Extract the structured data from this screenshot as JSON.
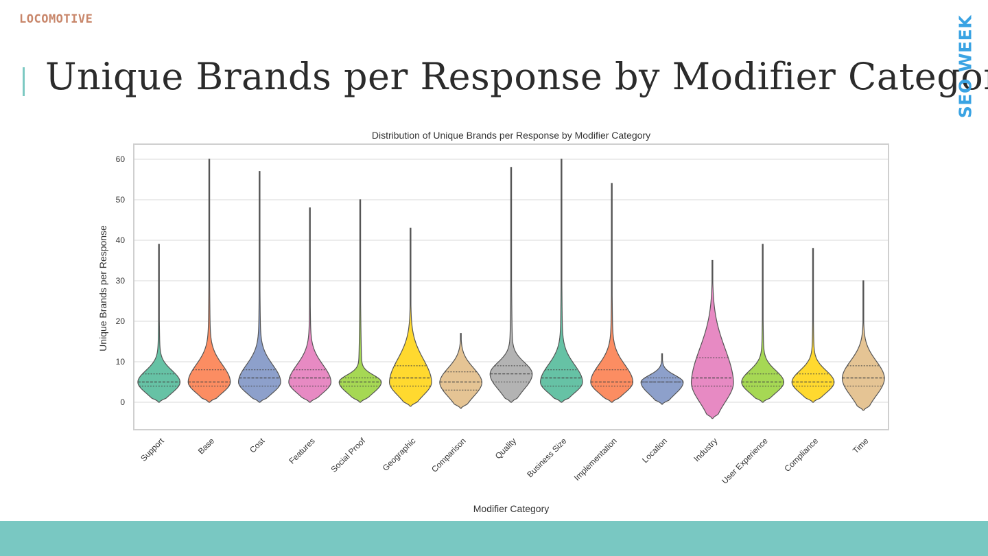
{
  "slide": {
    "logo_text": "LOCOMOTIVE",
    "title": "Unique Brands per Response by Modifier Category",
    "badge_text": "SEO WEEK"
  },
  "colors": {
    "accent_teal": "#79c8c2",
    "title_bar": "#7cc9c2",
    "badge_blue": "#3aa3e3",
    "logo_copper": "#c8866a"
  },
  "chart_data": {
    "type": "violin",
    "title": "Distribution of Unique Brands per Response by Modifier Category",
    "xlabel": "Modifier Category",
    "ylabel": "Unique Brands per Response",
    "ylim": [
      -7,
      64
    ],
    "yticks": [
      0,
      10,
      20,
      30,
      40,
      50,
      60
    ],
    "grid": true,
    "inner": "quartile",
    "categories": [
      "Support",
      "Base",
      "Cost",
      "Features",
      "Social Proof",
      "Geographic",
      "Comparison",
      "Quality",
      "Business Size",
      "Implementation",
      "Location",
      "Industry",
      "User Experience",
      "Compliance",
      "Time"
    ],
    "series": [
      {
        "category": "Support",
        "color": "#66c2a5",
        "min": 0,
        "q1": 4,
        "median": 5,
        "q3": 7,
        "mode": 5,
        "max": 39
      },
      {
        "category": "Base",
        "color": "#fc8d62",
        "min": 0,
        "q1": 4,
        "median": 5,
        "q3": 8,
        "mode": 5,
        "max": 60
      },
      {
        "category": "Cost",
        "color": "#8da0cb",
        "min": 0,
        "q1": 4,
        "median": 6,
        "q3": 8,
        "mode": 5,
        "max": 57
      },
      {
        "category": "Features",
        "color": "#e78ac3",
        "min": 0,
        "q1": 4,
        "median": 6,
        "q3": 8,
        "mode": 5,
        "max": 48
      },
      {
        "category": "Social Proof",
        "color": "#a6d854",
        "min": 0,
        "q1": 4,
        "median": 5,
        "q3": 6,
        "mode": 5,
        "max": 50
      },
      {
        "category": "Geographic",
        "color": "#ffd92f",
        "min": -1,
        "q1": 4,
        "median": 6,
        "q3": 9,
        "mode": 5,
        "max": 43
      },
      {
        "category": "Comparison",
        "color": "#e5c494",
        "min": -1.5,
        "q1": 3,
        "median": 5,
        "q3": 7.5,
        "mode": 5,
        "max": 17
      },
      {
        "category": "Quality",
        "color": "#b3b3b3",
        "min": 0,
        "q1": 5,
        "median": 7,
        "q3": 9,
        "mode": 7,
        "max": 58
      },
      {
        "category": "Business Size",
        "color": "#66c2a5",
        "min": 0,
        "q1": 4,
        "median": 6,
        "q3": 8,
        "mode": 5,
        "max": 60
      },
      {
        "category": "Implementation",
        "color": "#fc8d62",
        "min": 0,
        "q1": 4,
        "median": 5,
        "q3": 8,
        "mode": 5,
        "max": 54
      },
      {
        "category": "Location",
        "color": "#8da0cb",
        "min": -0.5,
        "q1": 5,
        "median": 5,
        "q3": 6,
        "mode": 5,
        "max": 12
      },
      {
        "category": "Industry",
        "color": "#e78ac3",
        "min": -4,
        "q1": 4,
        "median": 6,
        "q3": 11,
        "mode": 5,
        "max": 35
      },
      {
        "category": "User Experience",
        "color": "#a6d854",
        "min": 0,
        "q1": 4,
        "median": 5,
        "q3": 7,
        "mode": 5,
        "max": 39
      },
      {
        "category": "Compliance",
        "color": "#ffd92f",
        "min": 0,
        "q1": 4,
        "median": 5,
        "q3": 7,
        "mode": 5,
        "max": 38
      },
      {
        "category": "Time",
        "color": "#e5c494",
        "min": -2,
        "q1": 4,
        "median": 6,
        "q3": 9,
        "mode": 6,
        "max": 30
      }
    ]
  }
}
